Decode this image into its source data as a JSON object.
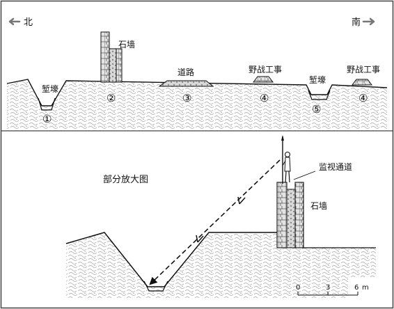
{
  "compass": {
    "north": "北",
    "south": "南"
  },
  "top_section": {
    "labels": {
      "stone_wall": "石墙",
      "road": "道路",
      "field_works_1": "野战工事",
      "trench_1": "堑壕",
      "trench_2": "堑壕",
      "field_works_2": "野战工事"
    },
    "markers": [
      "①",
      "②",
      "③",
      "④",
      "⑤",
      "④"
    ]
  },
  "detail_section": {
    "title": "部分放大图",
    "stone_wall": "石墙",
    "patrol_path": "监视通道"
  },
  "scale_bar": {
    "ticks": [
      "0",
      "3",
      "6"
    ],
    "unit": "m"
  },
  "colors": {
    "ink": "#111111",
    "ground_texture": "#9a9a9a",
    "border": "#444444",
    "wall_fill": "#d7d7d7"
  }
}
